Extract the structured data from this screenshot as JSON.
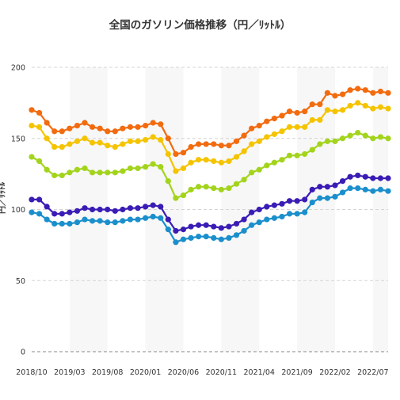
{
  "chart_data": {
    "type": "line",
    "title": "全国のガソリン価格推移（円／ﾘｯﾄﾙ）",
    "ylabel": "円／ﾘｯﾄﾙ",
    "ylim": [
      0,
      200
    ],
    "yticks": [
      0,
      50,
      100,
      150,
      200
    ],
    "xtick_labels": [
      "2018/10",
      "2019/03",
      "2019/08",
      "2020/01",
      "2020/06",
      "2020/11",
      "2021/04",
      "2021/09",
      "2022/02",
      "2022/07"
    ],
    "grid": true,
    "legend": "none",
    "x": [
      "2018/10",
      "2018/11",
      "2018/12",
      "2019/01",
      "2019/02",
      "2019/03",
      "2019/04",
      "2019/05",
      "2019/06",
      "2019/07",
      "2019/08",
      "2019/09",
      "2019/10",
      "2019/11",
      "2019/12",
      "2020/01",
      "2020/02",
      "2020/03",
      "2020/04",
      "2020/05",
      "2020/06",
      "2020/07",
      "2020/08",
      "2020/09",
      "2020/10",
      "2020/11",
      "2020/12",
      "2021/01",
      "2021/02",
      "2021/03",
      "2021/04",
      "2021/05",
      "2021/06",
      "2021/07",
      "2021/08",
      "2021/09",
      "2021/10",
      "2021/11",
      "2021/12",
      "2022/01",
      "2022/02",
      "2022/03",
      "2022/04",
      "2022/05",
      "2022/06",
      "2022/07",
      "2022/08",
      "2022/09"
    ],
    "series": [
      {
        "color": "#f26b0f",
        "values": [
          170,
          168,
          161,
          155,
          155,
          157,
          159,
          161,
          158,
          157,
          155,
          155,
          157,
          158,
          158,
          159,
          161,
          160,
          150,
          139,
          140,
          144,
          146,
          146,
          146,
          145,
          145,
          148,
          152,
          157,
          159,
          162,
          164,
          166,
          169,
          168,
          169,
          174,
          174,
          182,
          180,
          181,
          184,
          185,
          184,
          182,
          183,
          182
        ]
      },
      {
        "color": "#f5c400",
        "values": [
          159,
          158,
          150,
          144,
          144,
          146,
          148,
          150,
          147,
          147,
          145,
          144,
          146,
          148,
          148,
          149,
          151,
          149,
          139,
          127,
          129,
          133,
          135,
          135,
          134,
          133,
          134,
          137,
          141,
          146,
          148,
          151,
          153,
          155,
          158,
          158,
          158,
          163,
          163,
          170,
          169,
          170,
          173,
          175,
          173,
          171,
          172,
          171
        ]
      },
      {
        "color": "#a3d41c",
        "values": [
          137,
          134,
          128,
          124,
          124,
          126,
          128,
          129,
          126,
          126,
          126,
          126,
          127,
          129,
          129,
          130,
          132,
          130,
          120,
          108,
          110,
          114,
          116,
          116,
          115,
          114,
          115,
          118,
          121,
          126,
          128,
          131,
          133,
          135,
          138,
          138,
          139,
          142,
          146,
          148,
          148,
          150,
          152,
          154,
          152,
          150,
          151,
          150
        ]
      },
      {
        "color": "#3a1cb5",
        "values": [
          107,
          107,
          102,
          97,
          97,
          98,
          99,
          101,
          100,
          100,
          100,
          99,
          100,
          101,
          101,
          102,
          103,
          102,
          93,
          85,
          86,
          88,
          89,
          89,
          88,
          87,
          88,
          90,
          93,
          98,
          100,
          102,
          103,
          104,
          106,
          106,
          107,
          114,
          116,
          116,
          117,
          120,
          123,
          124,
          123,
          122,
          122,
          122
        ]
      },
      {
        "color": "#1a8fcc",
        "values": [
          98,
          97,
          93,
          90,
          90,
          90,
          91,
          93,
          92,
          92,
          91,
          91,
          92,
          93,
          93,
          94,
          95,
          94,
          86,
          77,
          79,
          80,
          81,
          81,
          80,
          79,
          80,
          82,
          85,
          89,
          91,
          93,
          94,
          95,
          97,
          97,
          98,
          105,
          108,
          108,
          109,
          112,
          115,
          115,
          114,
          113,
          114,
          113
        ]
      }
    ]
  }
}
